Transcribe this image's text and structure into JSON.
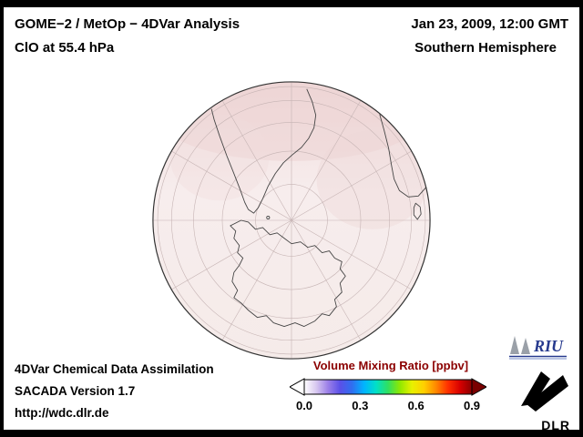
{
  "header": {
    "title_line1": "GOME−2 / MetOp − 4DVar Analysis",
    "title_line2": "ClO at 55.4 hPa",
    "datetime": "Jan 23, 2009, 12:00 GMT",
    "region": "Southern Hemisphere"
  },
  "map": {
    "description": "orthographic-southern-hemisphere-polar-view",
    "tint_color": "#f4e6e6",
    "graticule_color": "#c6b4b4",
    "coastline_color": "#444444"
  },
  "colorbar": {
    "title": "Volume Mixing Ratio [ppbv]",
    "title_color": "#8b0000",
    "ticks": [
      "0.0",
      "0.3",
      "0.6",
      "0.9"
    ],
    "gradient_stops": [
      "#ffffff",
      "#d8c8f0",
      "#9b7fe8",
      "#5a50e8",
      "#2f6ff0",
      "#00b4ff",
      "#00e0c8",
      "#30e060",
      "#90e800",
      "#e8f000",
      "#ffd000",
      "#ff8800",
      "#ff3000",
      "#d80000",
      "#8b0000"
    ],
    "left_arrow_color": "#ffffff",
    "right_arrow_color": "#7a0000"
  },
  "footer": {
    "line1": "4DVar Chemical Data Assimilation",
    "line2": "SACADA Version 1.7",
    "line3": "http://wdc.dlr.de"
  },
  "logos": {
    "riu_label": "RIU",
    "dlr_label": "DLR"
  }
}
